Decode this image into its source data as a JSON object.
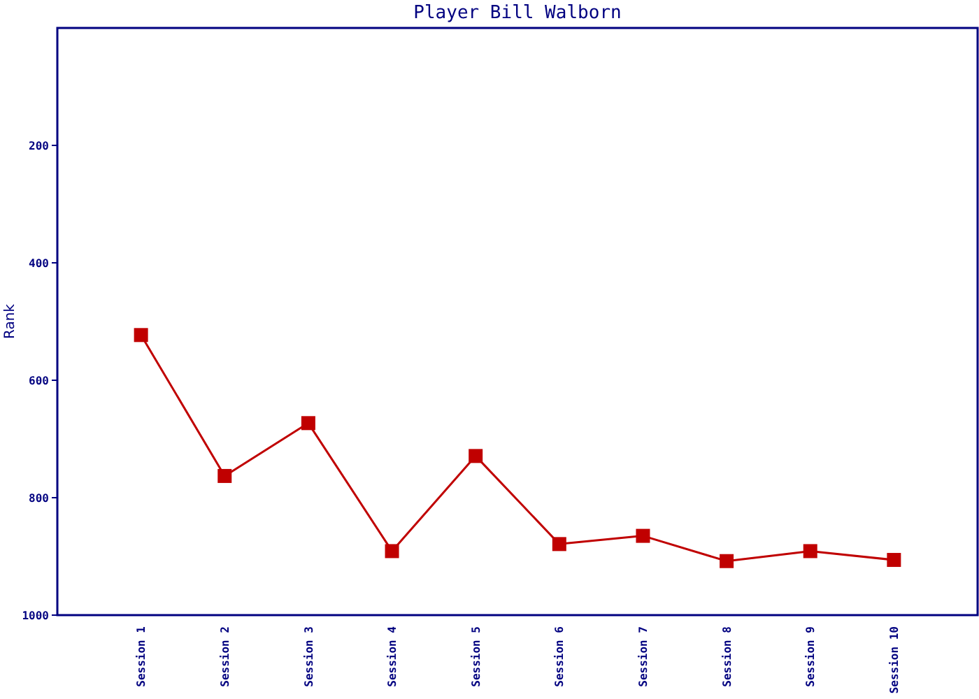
{
  "chart_data": {
    "type": "line",
    "title": "Player Bill Walborn",
    "ylabel": "Rank",
    "categories": [
      "Session 1",
      "Session 2",
      "Session 3",
      "Session 4",
      "Session 5",
      "Session 6",
      "Session 7",
      "Session 8",
      "Session 9",
      "Session 10"
    ],
    "series": [
      {
        "color": "#c00000",
        "values": [
          523,
          763,
          673,
          891,
          729,
          879,
          865,
          908,
          891,
          906
        ]
      }
    ],
    "ylim": [
      1000,
      0
    ],
    "yticks": [
      200,
      400,
      600,
      800,
      1000
    ],
    "grid": false,
    "marker": "square",
    "line_style": "solid"
  }
}
